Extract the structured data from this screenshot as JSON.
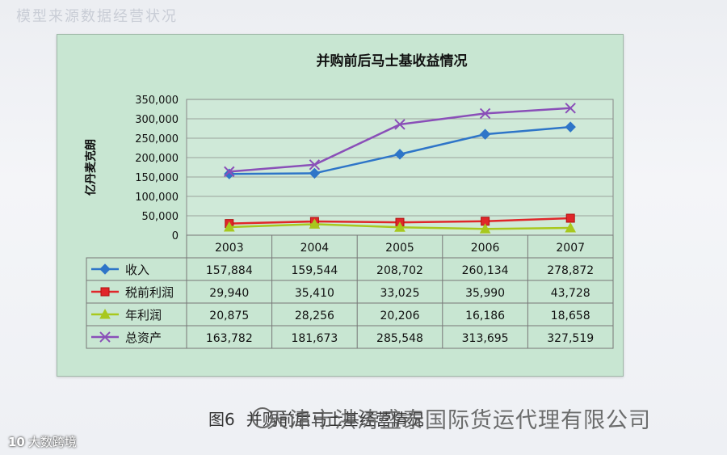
{
  "chart_data": {
    "type": "line",
    "title": "并购前后马士基收益情况",
    "ylabel": "亿丹麦克朗",
    "xlabel": "",
    "categories": [
      "2003",
      "2004",
      "2005",
      "2006",
      "2007"
    ],
    "ylim": [
      0,
      350000
    ],
    "yticks": [
      "350,000",
      "300,000",
      "250,000",
      "200,000",
      "150,000",
      "100,000",
      "50,000",
      "0"
    ],
    "ytick_values": [
      350000,
      300000,
      250000,
      200000,
      150000,
      100000,
      50000,
      0
    ],
    "grid": true,
    "legend_placement": "data-table-left",
    "series": [
      {
        "name": "收入",
        "color": "#2e75c8",
        "marker": "diamond",
        "values": [
          157884,
          159544,
          208702,
          260134,
          278872
        ],
        "labels": [
          "157,884",
          "159,544",
          "208,702",
          "260,134",
          "278,872"
        ]
      },
      {
        "name": "税前利润",
        "color": "#e0262a",
        "marker": "square",
        "values": [
          29940,
          35410,
          33025,
          35990,
          43728
        ],
        "labels": [
          "29,940",
          "35,410",
          "33,025",
          "35,990",
          "43,728"
        ]
      },
      {
        "name": "年利润",
        "color": "#a8c81e",
        "marker": "triangle",
        "values": [
          20875,
          28256,
          20206,
          16186,
          18658
        ],
        "labels": [
          "20,875",
          "28,256",
          "20,206",
          "16,186",
          "18,658"
        ]
      },
      {
        "name": "总资产",
        "color": "#8a4fb8",
        "marker": "x",
        "values": [
          163782,
          181673,
          285548,
          313695,
          327519
        ],
        "labels": [
          "163,782",
          "181,673",
          "285,548",
          "313,695",
          "327,519"
        ]
      }
    ]
  },
  "caption": {
    "figure_number": "图6",
    "text": "并购前后马士基经营情况"
  },
  "watermark": {
    "text": "天津市洪涛盛泰国际货运代理有限公司"
  },
  "bottom_logo": {
    "mark": "10",
    "text": "大数跨境"
  },
  "page_ghost_text": "模型来源数据经营状况"
}
